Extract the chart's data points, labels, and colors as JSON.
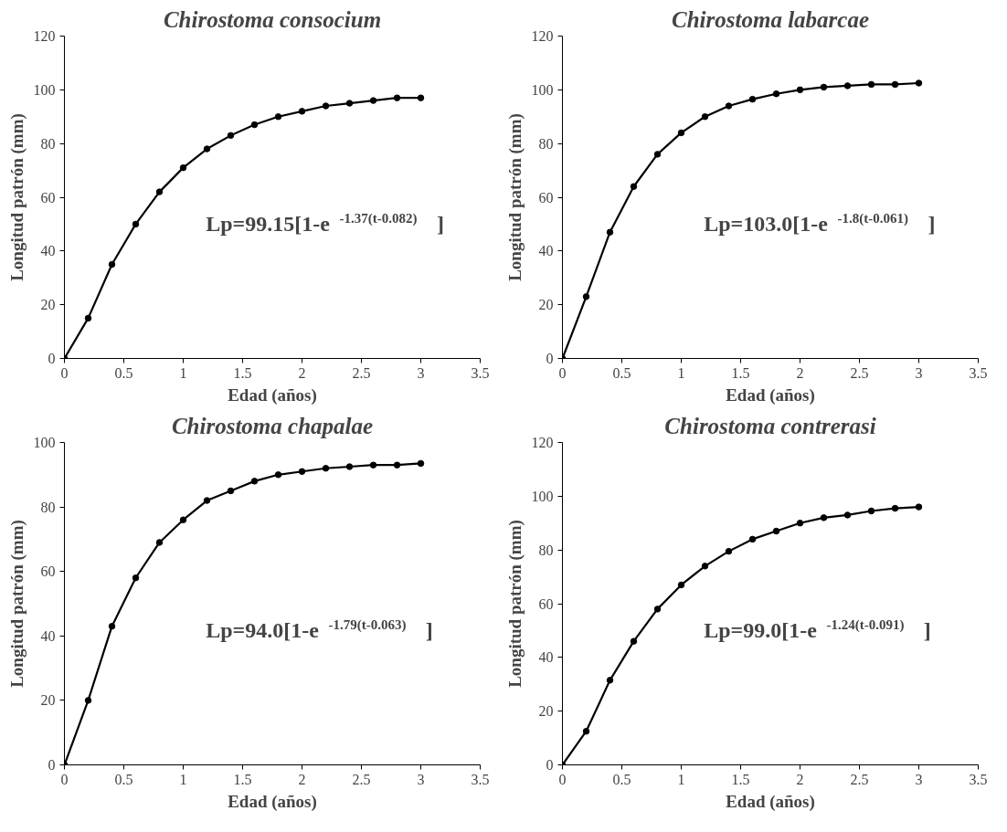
{
  "chart_data": [
    {
      "type": "line",
      "title": "Chirostoma consocium",
      "xlabel": "Edad (años)",
      "ylabel": "Longitud patrón (mm)",
      "x": [
        0,
        0.2,
        0.4,
        0.6,
        0.8,
        1.0,
        1.2,
        1.4,
        1.6,
        1.8,
        2.0,
        2.2,
        2.4,
        2.6,
        2.8,
        3.0
      ],
      "series": [
        {
          "color": "#000000",
          "values": [
            0,
            15,
            35,
            50,
            62,
            71,
            78,
            83,
            87,
            90,
            92,
            94,
            95,
            96,
            97,
            97
          ]
        }
      ],
      "xlim": [
        0,
        3.5
      ],
      "xticks": [
        0,
        0.5,
        1,
        1.5,
        2,
        2.5,
        3,
        3.5
      ],
      "ylim": [
        0,
        120
      ],
      "yticks": [
        0,
        20,
        40,
        60,
        80,
        100,
        120
      ],
      "marker": "circle",
      "line_style": "solid",
      "grid": false,
      "annotations": [
        "Lp=99.15[1-e$^{-1.37(t-0.082)}$]"
      ]
    },
    {
      "type": "line",
      "title": "Chirostoma labarcae",
      "xlabel": "Edad (años)",
      "ylabel": "Longitud patrón (mm)",
      "x": [
        0,
        0.2,
        0.4,
        0.6,
        0.8,
        1.0,
        1.2,
        1.4,
        1.6,
        1.8,
        2.0,
        2.2,
        2.4,
        2.6,
        2.8,
        3.0
      ],
      "series": [
        {
          "color": "#000000",
          "values": [
            0,
            23,
            47,
            64,
            76,
            84,
            90,
            94,
            96.5,
            98.5,
            100,
            101,
            101.5,
            102,
            102,
            102.5
          ]
        }
      ],
      "xlim": [
        0,
        3.5
      ],
      "xticks": [
        0,
        0.5,
        1,
        1.5,
        2,
        2.5,
        3,
        3.5
      ],
      "ylim": [
        0,
        120
      ],
      "yticks": [
        0,
        20,
        40,
        60,
        80,
        100,
        120
      ],
      "marker": "circle",
      "line_style": "solid",
      "grid": false,
      "annotations": [
        "Lp=103.0[1-e$^{-1.8(t-0.061)}$]"
      ]
    },
    {
      "type": "line",
      "title": "Chirostoma chapalae",
      "xlabel": "Edad (años)",
      "ylabel": "Longitud patrón (mm)",
      "x": [
        0,
        0.2,
        0.4,
        0.6,
        0.8,
        1.0,
        1.2,
        1.4,
        1.6,
        1.8,
        2.0,
        2.2,
        2.4,
        2.6,
        2.8,
        3.0
      ],
      "series": [
        {
          "color": "#000000",
          "values": [
            0,
            20,
            43,
            58,
            69,
            76,
            82,
            85,
            88,
            90,
            91,
            92,
            92.5,
            93,
            93,
            93.5
          ]
        }
      ],
      "xlim": [
        0,
        3.5
      ],
      "xticks": [
        0,
        0.5,
        1,
        1.5,
        2,
        2.5,
        3,
        3.5
      ],
      "ylim": [
        0,
        100
      ],
      "yticks": [
        0,
        20,
        40,
        60,
        80,
        100
      ],
      "marker": "circle",
      "line_style": "solid",
      "grid": false,
      "annotations": [
        "Lp=94.0[1-e$^{-1.79(t-0.063)}$]"
      ]
    },
    {
      "type": "line",
      "title": "Chirostoma contrerasi",
      "xlabel": "Edad (años)",
      "ylabel": "Longitud patrón (mm)",
      "x": [
        0,
        0.2,
        0.4,
        0.6,
        0.8,
        1.0,
        1.2,
        1.4,
        1.6,
        1.8,
        2.0,
        2.2,
        2.4,
        2.6,
        2.8,
        3.0
      ],
      "series": [
        {
          "color": "#000000",
          "values": [
            0,
            12.5,
            31.5,
            46,
            58,
            67,
            74,
            79.5,
            84,
            87,
            90,
            92,
            93,
            94.5,
            95.5,
            96
          ]
        }
      ],
      "xlim": [
        0,
        3.5
      ],
      "xticks": [
        0,
        0.5,
        1,
        1.5,
        2,
        2.5,
        3,
        3.5
      ],
      "ylim": [
        0,
        120
      ],
      "yticks": [
        0,
        20,
        40,
        60,
        80,
        100,
        120
      ],
      "marker": "circle",
      "line_style": "solid",
      "grid": false,
      "annotations": [
        "Lp=99.0[1-e$^{-1.24(t-0.091)}$]"
      ]
    }
  ]
}
